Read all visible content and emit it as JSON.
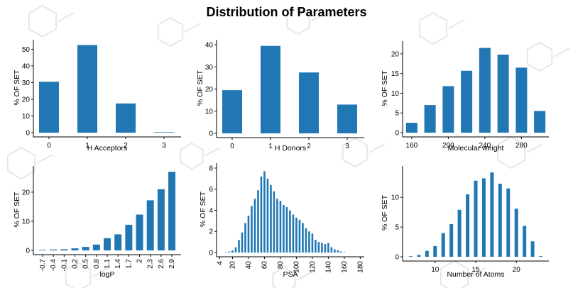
{
  "title": "Distribution of Parameters",
  "colors": {
    "bar": "#2077b4",
    "axis": "#000000",
    "background_motif": "#e7e7e7"
  },
  "chart_data": [
    {
      "type": "bar",
      "xlabel": "H Acceptors",
      "ylabel": "% OF SET",
      "categories": [
        "0",
        "1",
        "2",
        "3"
      ],
      "values": [
        30.5,
        52.5,
        17.5,
        0.3
      ],
      "ylim": [
        0,
        54
      ],
      "yticks": [
        0,
        10,
        20,
        30,
        40,
        50
      ],
      "grid": false
    },
    {
      "type": "bar",
      "xlabel": "H Donors",
      "ylabel": "% OF SET",
      "categories": [
        "0",
        "1",
        "2",
        "3"
      ],
      "values": [
        19.5,
        39.5,
        27.5,
        13
      ],
      "ylim": [
        0,
        41
      ],
      "yticks": [
        0,
        10,
        20,
        30,
        40
      ],
      "grid": false
    },
    {
      "type": "bar",
      "xlabel": "Molecular weight",
      "ylabel": "% OF SET",
      "x": [
        160,
        180,
        200,
        220,
        240,
        260,
        280,
        300
      ],
      "values": [
        2.5,
        7,
        11.8,
        15.7,
        21.5,
        19.8,
        16.5,
        5.5
      ],
      "xlim": [
        150,
        310
      ],
      "xticks": [
        160,
        200,
        240,
        280
      ],
      "ylim": [
        0,
        22.5
      ],
      "yticks": [
        0,
        5,
        10,
        15,
        20
      ],
      "grid": false
    },
    {
      "type": "bar",
      "xlabel": "logP",
      "ylabel": "% OF SET",
      "categories": [
        "-0.7",
        "-0.4",
        "-0.1",
        "0.2",
        "0.5",
        "0.8",
        "1.1",
        "1.4",
        "1.7",
        "2",
        "2.3",
        "2.6",
        "2.9"
      ],
      "values": [
        0.2,
        0.3,
        0.4,
        0.7,
        1.2,
        2,
        4.2,
        5.5,
        8.8,
        12.3,
        17.2,
        21,
        27
      ],
      "ylim": [
        0,
        28
      ],
      "yticks": [
        0,
        10,
        20
      ],
      "grid": false
    },
    {
      "type": "bar",
      "xlabel": "PSA",
      "ylabel": "% OF SET",
      "x": [
        12,
        16,
        20,
        24,
        28,
        32,
        36,
        40,
        44,
        48,
        52,
        56,
        60,
        64,
        68,
        72,
        76,
        80,
        84,
        88,
        92,
        96,
        100,
        104,
        108,
        112,
        116,
        120,
        124,
        128,
        132,
        136,
        140,
        144,
        148,
        152,
        156,
        160
      ],
      "values": [
        0.05,
        0.1,
        0.2,
        0.5,
        1.2,
        1.9,
        2.8,
        3.5,
        4.4,
        5.1,
        5.9,
        7.2,
        7.7,
        7.0,
        6.4,
        5.8,
        5.1,
        4.9,
        4.5,
        4.3,
        4.0,
        3.6,
        3.3,
        3.1,
        2.8,
        2.3,
        2.0,
        1.8,
        1.2,
        1.0,
        0.9,
        0.8,
        0.9,
        0.5,
        0.3,
        0.2,
        0.1,
        0.05
      ],
      "xlim": [
        0,
        185
      ],
      "xticks": [
        4,
        20,
        40,
        60,
        80,
        100,
        120,
        140,
        160,
        180
      ],
      "ylim": [
        0,
        8.2
      ],
      "yticks": [
        0,
        2,
        4,
        6,
        8
      ],
      "grid": false
    },
    {
      "type": "bar",
      "xlabel": "Number of Atoms",
      "ylabel": "% OF SET",
      "x": [
        7,
        8,
        9,
        10,
        11,
        12,
        13,
        14,
        15,
        16,
        17,
        18,
        19,
        20,
        21,
        22,
        23
      ],
      "values": [
        0.1,
        0.3,
        1,
        1.8,
        4,
        5.5,
        7.9,
        10.5,
        12.8,
        13.2,
        14.2,
        12.3,
        11.5,
        8.1,
        5.2,
        2.6,
        0.1
      ],
      "xlim": [
        6,
        24
      ],
      "xticks": [
        10,
        15,
        20
      ],
      "ylim": [
        0,
        14.8
      ],
      "yticks": [
        0,
        5,
        10
      ],
      "grid": false
    }
  ]
}
